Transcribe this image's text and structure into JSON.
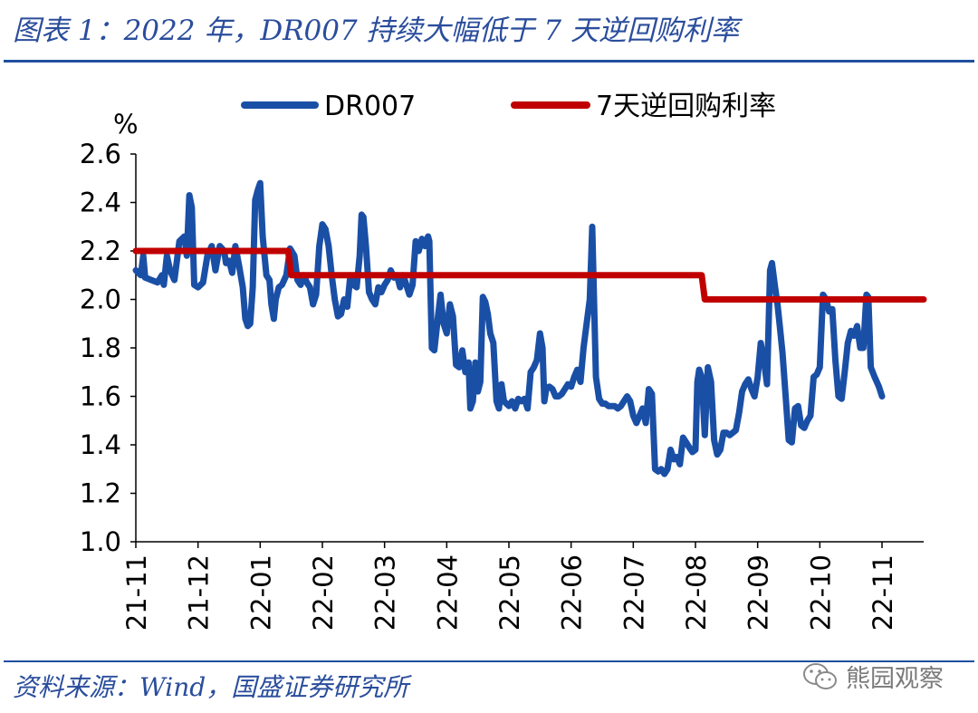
{
  "title": "图表 1：2022 年，DR007 持续大幅低于 7 天逆回购利率",
  "source": "资料来源：Wind，国盛证券研究所",
  "watermark": "熊园观察",
  "watermark_icon": "wechat-icon",
  "colors": {
    "series1": "#1a4fa6",
    "series2": "#c00000",
    "accent": "#1f4f9f"
  },
  "chart_data": {
    "type": "line",
    "title": "图表 1：2022 年，DR007 持续大幅低于 7 天逆回购利率",
    "ylabel": "%",
    "xlabel": "",
    "ylim": [
      1.0,
      2.6
    ],
    "yticks": [
      "1.0",
      "1.2",
      "1.4",
      "1.6",
      "1.8",
      "2.0",
      "2.2",
      "2.4",
      "2.6"
    ],
    "xticks": [
      "21-11",
      "21-12",
      "22-01",
      "22-02",
      "22-03",
      "22-04",
      "22-05",
      "22-06",
      "22-07",
      "22-08",
      "22-09",
      "22-10",
      "22-11"
    ],
    "x_range_months": [
      0,
      12.67
    ],
    "legend_position": "top",
    "grid": false,
    "series": [
      {
        "name": "DR007",
        "points": [
          [
            0.0,
            2.12
          ],
          [
            0.08,
            2.1
          ],
          [
            0.12,
            2.18
          ],
          [
            0.15,
            2.09
          ],
          [
            0.25,
            2.08
          ],
          [
            0.35,
            2.07
          ],
          [
            0.42,
            2.1
          ],
          [
            0.45,
            2.06
          ],
          [
            0.5,
            2.18
          ],
          [
            0.55,
            2.12
          ],
          [
            0.62,
            2.08
          ],
          [
            0.7,
            2.24
          ],
          [
            0.78,
            2.26
          ],
          [
            0.82,
            2.18
          ],
          [
            0.86,
            2.43
          ],
          [
            0.9,
            2.38
          ],
          [
            0.94,
            2.06
          ],
          [
            1.0,
            2.05
          ],
          [
            1.08,
            2.07
          ],
          [
            1.15,
            2.18
          ],
          [
            1.22,
            2.22
          ],
          [
            1.28,
            2.12
          ],
          [
            1.35,
            2.22
          ],
          [
            1.42,
            2.2
          ],
          [
            1.45,
            2.15
          ],
          [
            1.5,
            2.16
          ],
          [
            1.55,
            2.11
          ],
          [
            1.6,
            2.22
          ],
          [
            1.66,
            2.14
          ],
          [
            1.72,
            2.05
          ],
          [
            1.76,
            1.92
          ],
          [
            1.8,
            1.89
          ],
          [
            1.84,
            1.9
          ],
          [
            1.88,
            2.05
          ],
          [
            1.92,
            2.41
          ],
          [
            1.96,
            2.45
          ],
          [
            2.0,
            2.48
          ],
          [
            2.04,
            2.26
          ],
          [
            2.1,
            2.1
          ],
          [
            2.15,
            2.08
          ],
          [
            2.18,
            1.98
          ],
          [
            2.22,
            1.92
          ],
          [
            2.25,
            2.0
          ],
          [
            2.3,
            2.05
          ],
          [
            2.35,
            2.06
          ],
          [
            2.42,
            2.1
          ],
          [
            2.48,
            2.21
          ],
          [
            2.55,
            2.18
          ],
          [
            2.6,
            2.08
          ],
          [
            2.65,
            2.06
          ],
          [
            2.7,
            2.1
          ],
          [
            2.75,
            2.07
          ],
          [
            2.8,
            2.05
          ],
          [
            2.85,
            1.98
          ],
          [
            2.9,
            2.02
          ],
          [
            2.95,
            2.22
          ],
          [
            3.0,
            2.31
          ],
          [
            3.05,
            2.29
          ],
          [
            3.1,
            2.22
          ],
          [
            3.15,
            2.1
          ],
          [
            3.2,
            2.0
          ],
          [
            3.25,
            1.93
          ],
          [
            3.3,
            1.94
          ],
          [
            3.35,
            2.0
          ],
          [
            3.4,
            1.97
          ],
          [
            3.45,
            2.1
          ],
          [
            3.5,
            2.06
          ],
          [
            3.55,
            2.05
          ],
          [
            3.6,
            2.18
          ],
          [
            3.63,
            2.35
          ],
          [
            3.66,
            2.34
          ],
          [
            3.7,
            2.22
          ],
          [
            3.75,
            2.03
          ],
          [
            3.8,
            2.0
          ],
          [
            3.85,
            1.98
          ],
          [
            3.9,
            2.05
          ],
          [
            3.95,
            2.03
          ],
          [
            4.0,
            2.06
          ],
          [
            4.05,
            2.08
          ],
          [
            4.1,
            2.12
          ],
          [
            4.15,
            2.09
          ],
          [
            4.2,
            2.1
          ],
          [
            4.25,
            2.05
          ],
          [
            4.3,
            2.1
          ],
          [
            4.35,
            2.06
          ],
          [
            4.4,
            2.02
          ],
          [
            4.45,
            2.06
          ],
          [
            4.5,
            2.24
          ],
          [
            4.55,
            2.2
          ],
          [
            4.6,
            2.25
          ],
          [
            4.65,
            2.22
          ],
          [
            4.7,
            2.26
          ],
          [
            4.72,
            2.24
          ],
          [
            4.76,
            1.8
          ],
          [
            4.8,
            1.79
          ],
          [
            4.86,
            1.93
          ],
          [
            4.9,
            2.02
          ],
          [
            4.95,
            1.9
          ],
          [
            5.0,
            1.86
          ],
          [
            5.05,
            1.98
          ],
          [
            5.1,
            1.93
          ],
          [
            5.15,
            1.73
          ],
          [
            5.2,
            1.72
          ],
          [
            5.25,
            1.79
          ],
          [
            5.3,
            1.7
          ],
          [
            5.35,
            1.74
          ],
          [
            5.38,
            1.55
          ],
          [
            5.42,
            1.58
          ],
          [
            5.46,
            1.74
          ],
          [
            5.5,
            1.62
          ],
          [
            5.54,
            1.66
          ],
          [
            5.58,
            2.01
          ],
          [
            5.62,
            1.99
          ],
          [
            5.66,
            1.94
          ],
          [
            5.7,
            1.86
          ],
          [
            5.75,
            1.82
          ],
          [
            5.8,
            1.58
          ],
          [
            5.84,
            1.55
          ],
          [
            5.88,
            1.65
          ],
          [
            5.92,
            1.58
          ],
          [
            5.96,
            1.57
          ],
          [
            6.0,
            1.56
          ],
          [
            6.05,
            1.58
          ],
          [
            6.1,
            1.55
          ],
          [
            6.15,
            1.59
          ],
          [
            6.2,
            1.58
          ],
          [
            6.25,
            1.59
          ],
          [
            6.3,
            1.55
          ],
          [
            6.35,
            1.7
          ],
          [
            6.4,
            1.72
          ],
          [
            6.45,
            1.75
          ],
          [
            6.5,
            1.86
          ],
          [
            6.54,
            1.8
          ],
          [
            6.57,
            1.58
          ],
          [
            6.6,
            1.63
          ],
          [
            6.65,
            1.64
          ],
          [
            6.7,
            1.63
          ],
          [
            6.75,
            1.6
          ],
          [
            6.8,
            1.6
          ],
          [
            6.85,
            1.61
          ],
          [
            6.9,
            1.63
          ],
          [
            6.95,
            1.65
          ],
          [
            7.0,
            1.64
          ],
          [
            7.05,
            1.68
          ],
          [
            7.1,
            1.71
          ],
          [
            7.15,
            1.66
          ],
          [
            7.2,
            1.8
          ],
          [
            7.25,
            1.9
          ],
          [
            7.3,
            2.0
          ],
          [
            7.34,
            2.3
          ],
          [
            7.37,
            1.98
          ],
          [
            7.4,
            1.68
          ],
          [
            7.45,
            1.59
          ],
          [
            7.5,
            1.57
          ],
          [
            7.55,
            1.57
          ],
          [
            7.6,
            1.56
          ],
          [
            7.65,
            1.56
          ],
          [
            7.7,
            1.56
          ],
          [
            7.75,
            1.55
          ],
          [
            7.8,
            1.56
          ],
          [
            7.85,
            1.58
          ],
          [
            7.9,
            1.6
          ],
          [
            7.95,
            1.58
          ],
          [
            8.0,
            1.52
          ],
          [
            8.05,
            1.49
          ],
          [
            8.1,
            1.52
          ],
          [
            8.15,
            1.55
          ],
          [
            8.2,
            1.49
          ],
          [
            8.25,
            1.63
          ],
          [
            8.3,
            1.61
          ],
          [
            8.35,
            1.3
          ],
          [
            8.4,
            1.29
          ],
          [
            8.45,
            1.3
          ],
          [
            8.5,
            1.28
          ],
          [
            8.55,
            1.3
          ],
          [
            8.6,
            1.38
          ],
          [
            8.65,
            1.34
          ],
          [
            8.7,
            1.35
          ],
          [
            8.75,
            1.32
          ],
          [
            8.8,
            1.43
          ],
          [
            8.85,
            1.41
          ],
          [
            8.9,
            1.39
          ],
          [
            8.95,
            1.37
          ],
          [
            9.0,
            1.38
          ],
          [
            9.03,
            1.66
          ],
          [
            9.06,
            1.71
          ],
          [
            9.1,
            1.68
          ],
          [
            9.15,
            1.44
          ],
          [
            9.2,
            1.72
          ],
          [
            9.25,
            1.66
          ],
          [
            9.3,
            1.42
          ],
          [
            9.35,
            1.36
          ],
          [
            9.4,
            1.38
          ],
          [
            9.45,
            1.45
          ],
          [
            9.5,
            1.45
          ],
          [
            9.55,
            1.44
          ],
          [
            9.6,
            1.45
          ],
          [
            9.65,
            1.46
          ],
          [
            9.7,
            1.53
          ],
          [
            9.75,
            1.62
          ],
          [
            9.8,
            1.65
          ],
          [
            9.85,
            1.67
          ],
          [
            9.9,
            1.63
          ],
          [
            9.95,
            1.6
          ],
          [
            10.0,
            1.68
          ],
          [
            10.05,
            1.82
          ],
          [
            10.1,
            1.75
          ],
          [
            10.15,
            1.65
          ],
          [
            10.2,
            2.12
          ],
          [
            10.23,
            2.15
          ],
          [
            10.28,
            2.05
          ],
          [
            10.32,
            1.98
          ],
          [
            10.36,
            1.88
          ],
          [
            10.4,
            1.78
          ],
          [
            10.45,
            1.6
          ],
          [
            10.5,
            1.42
          ],
          [
            10.55,
            1.41
          ],
          [
            10.6,
            1.55
          ],
          [
            10.65,
            1.56
          ],
          [
            10.7,
            1.48
          ],
          [
            10.75,
            1.47
          ],
          [
            10.8,
            1.5
          ],
          [
            10.85,
            1.52
          ],
          [
            10.9,
            1.68
          ],
          [
            10.95,
            1.69
          ],
          [
            11.0,
            1.72
          ],
          [
            11.05,
            2.02
          ],
          [
            11.1,
            2.0
          ],
          [
            11.15,
            1.95
          ],
          [
            11.2,
            1.96
          ],
          [
            11.25,
            1.75
          ],
          [
            11.3,
            1.6
          ],
          [
            11.35,
            1.59
          ],
          [
            11.4,
            1.7
          ],
          [
            11.45,
            1.82
          ],
          [
            11.5,
            1.87
          ],
          [
            11.55,
            1.85
          ],
          [
            11.6,
            1.89
          ],
          [
            11.65,
            1.8
          ],
          [
            11.7,
            1.8
          ],
          [
            11.75,
            2.02
          ],
          [
            11.78,
            2.01
          ],
          [
            11.82,
            1.72
          ],
          [
            11.88,
            1.68
          ],
          [
            11.95,
            1.64
          ],
          [
            12.0,
            1.6
          ]
        ]
      },
      {
        "name": "7天逆回购利率",
        "points": [
          [
            0.0,
            2.2
          ],
          [
            2.45,
            2.2
          ],
          [
            2.5,
            2.1
          ],
          [
            9.1,
            2.1
          ],
          [
            9.15,
            2.0
          ],
          [
            12.67,
            2.0
          ]
        ]
      }
    ]
  }
}
